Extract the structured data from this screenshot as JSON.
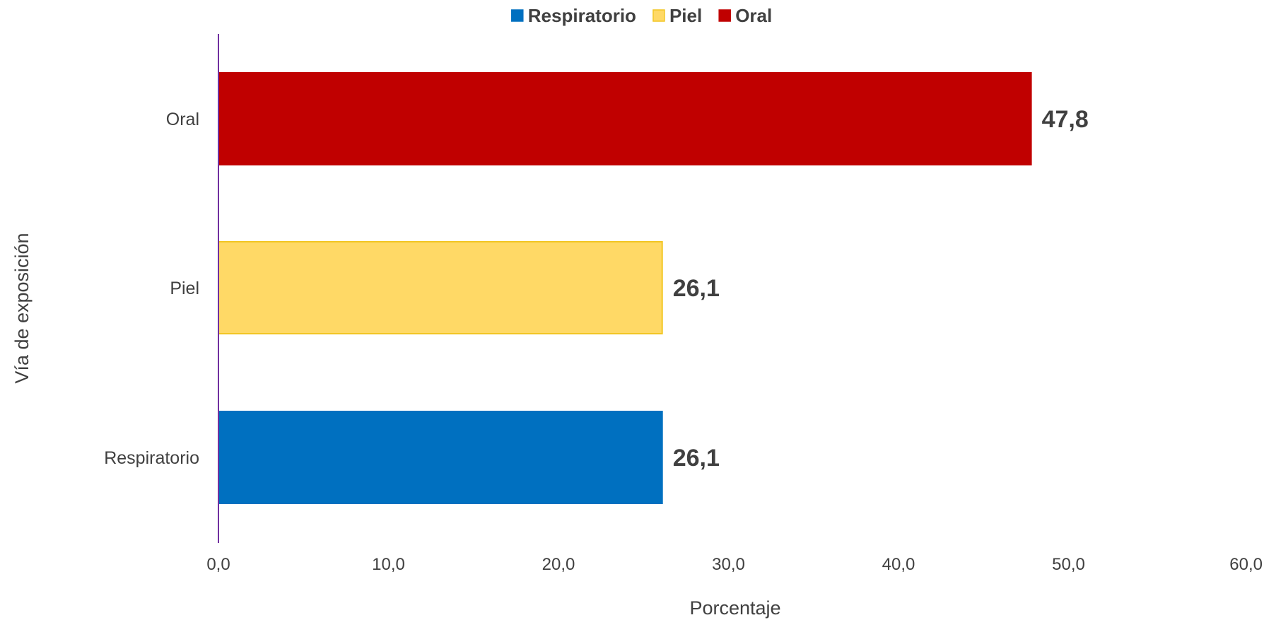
{
  "chart_data": {
    "type": "bar",
    "orientation": "horizontal",
    "categories": [
      "Respiratorio",
      "Piel",
      "Oral"
    ],
    "values": [
      26.1,
      26.1,
      47.8
    ],
    "data_labels": [
      "26,1",
      "26,1",
      "47,8"
    ],
    "colors": [
      "#0070C0",
      "#FFD966",
      "#C00000"
    ],
    "xlabel": "Porcentaje",
    "ylabel": "Vía de exposición",
    "xlim": [
      0,
      60
    ],
    "x_ticks": [
      0,
      10,
      20,
      30,
      40,
      50,
      60
    ],
    "x_tick_labels": [
      "0,0",
      "10,0",
      "20,0",
      "30,0",
      "40,0",
      "50,0",
      "60,0"
    ],
    "grid": false,
    "legend": {
      "position": "top",
      "entries": [
        "Respiratorio",
        "Piel",
        "Oral"
      ]
    }
  }
}
